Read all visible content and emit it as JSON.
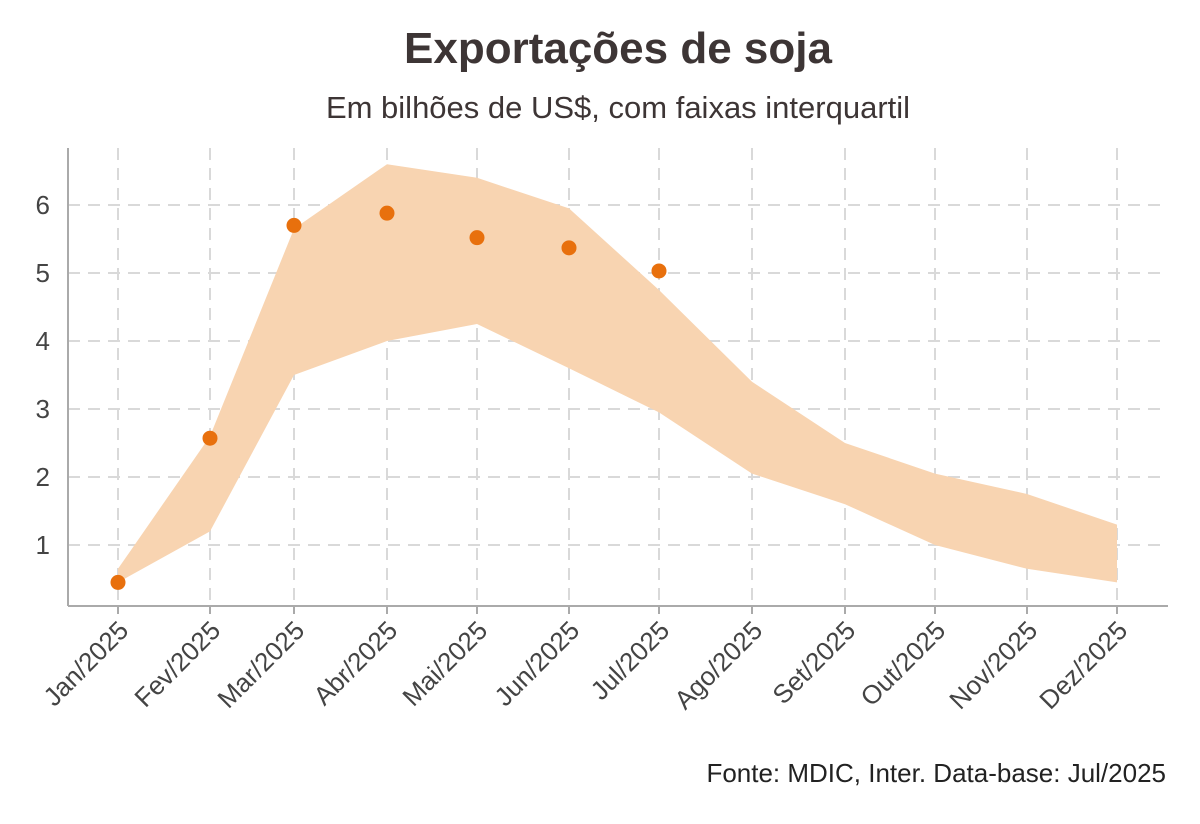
{
  "header": {
    "title": "Exportações de soja",
    "subtitle": "Em bilhões de US$, com faixas interquartil"
  },
  "footer": {
    "caption": "Fonte: MDIC, Inter. Data-base: Jul/2025"
  },
  "colors": {
    "band": "#f8d4b1",
    "points": "#e8700d",
    "grid": "#d9d9d9",
    "axis": "#aaaaaa"
  },
  "chart_data": {
    "type": "scatter",
    "title": "Exportações de soja",
    "subtitle": "Em bilhões de US$, com faixas interquartil",
    "xlabel": "",
    "ylabel": "",
    "categories": [
      "Jan/2025",
      "Fev/2025",
      "Mar/2025",
      "Abr/2025",
      "Mai/2025",
      "Jun/2025",
      "Jul/2025",
      "Ago/2025",
      "Set/2025",
      "Out/2025",
      "Nov/2025",
      "Dez/2025"
    ],
    "yticks": [
      1,
      2,
      3,
      4,
      5,
      6
    ],
    "ylim": [
      0.1,
      6.9
    ],
    "grid": true,
    "band": {
      "lower": [
        0.45,
        1.2,
        3.5,
        4.0,
        4.25,
        3.6,
        2.95,
        2.05,
        1.6,
        1.0,
        0.65,
        0.45
      ],
      "upper": [
        0.65,
        2.6,
        5.65,
        6.6,
        6.4,
        5.95,
        4.75,
        3.4,
        2.5,
        2.05,
        1.75,
        1.3
      ]
    },
    "series": [
      {
        "values": [
          0.45,
          2.57,
          5.7,
          5.88,
          5.52,
          5.37,
          5.03,
          null,
          null,
          null,
          null,
          null
        ]
      }
    ]
  }
}
